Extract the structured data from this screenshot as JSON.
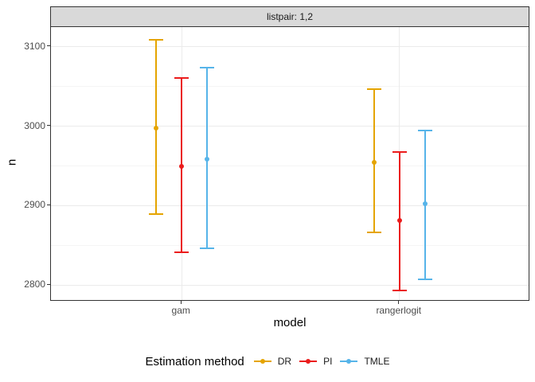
{
  "figure": {
    "strip_label": "listpair: 1,2",
    "x_axis_title": "model",
    "y_axis_title": "n",
    "legend_title": "Estimation method"
  },
  "chart_data": {
    "type": "errorbar",
    "title": "listpair: 1,2",
    "xlabel": "model",
    "ylabel": "n",
    "categories": [
      "gam",
      "rangerlogit"
    ],
    "series": [
      {
        "name": "DR",
        "color": "#E5A400",
        "dodge": -32,
        "points": [
          2998,
          2955
        ],
        "lower": [
          2889,
          2866
        ],
        "upper": [
          3109,
          3047
        ]
      },
      {
        "name": "PI",
        "color": "#EB1C1C",
        "dodge": 0,
        "points": [
          2950,
          2881
        ],
        "lower": [
          2841,
          2793
        ],
        "upper": [
          3061,
          2968
        ]
      },
      {
        "name": "TMLE",
        "color": "#56B4E9",
        "dodge": 32,
        "points": [
          2959,
          2902
        ],
        "lower": [
          2846,
          2807
        ],
        "upper": [
          3074,
          2995
        ]
      }
    ],
    "ylim": [
      2779,
      3125
    ],
    "yticks": [
      2800,
      2900,
      3000,
      3100
    ],
    "yticks_minor": [
      2850,
      2950,
      3050
    ],
    "category_pos": [
      0.2727,
      0.7273
    ],
    "grid": true,
    "legend": {
      "title": "Estimation method",
      "position": "bottom"
    }
  },
  "colors": {
    "strip_bg": "#D9D9D9",
    "panel_border": "#333333",
    "grid_major": "#EBEBEB",
    "grid_minor": "#F5F5F5",
    "tick_label": "#4D4D4D"
  }
}
